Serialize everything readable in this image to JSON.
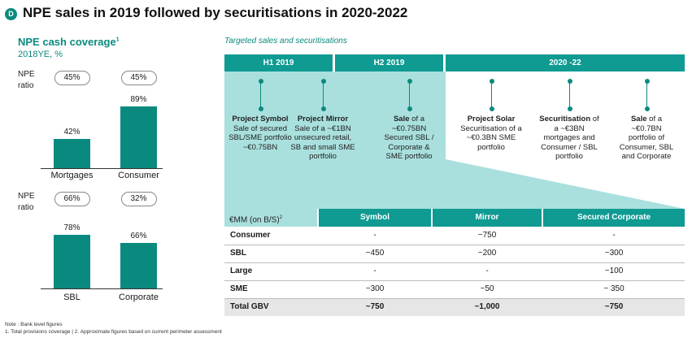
{
  "header": {
    "badge": "D",
    "title": "NPE sales in 2019 followed by securitisations in 2020-2022"
  },
  "coverage": {
    "title": "NPE cash coverage",
    "title_sup": "1",
    "subtitle": "2018YE, %",
    "npe_label_1": "NPE",
    "npe_label_2": "ratio"
  },
  "chart_data": [
    {
      "type": "bar",
      "title": "NPE cash coverage (top)",
      "categories": [
        "Mortgages",
        "Consumer"
      ],
      "values": [
        42,
        89
      ],
      "value_labels": [
        "42%",
        "89%"
      ],
      "npe_ratio": [
        "45%",
        "45%"
      ],
      "ylim": [
        0,
        100
      ]
    },
    {
      "type": "bar",
      "title": "NPE cash coverage (bottom)",
      "categories": [
        "SBL",
        "Corporate"
      ],
      "values": [
        78,
        66
      ],
      "value_labels": [
        "78%",
        "66%"
      ],
      "npe_ratio": [
        "66%",
        "32%"
      ],
      "ylim": [
        0,
        100
      ]
    }
  ],
  "timeline": {
    "caption": "Targeted sales and securitisations",
    "periods": [
      "H1 2019",
      "H2 2019",
      "2020 -22"
    ],
    "projects": [
      {
        "bold": "Project Symbol",
        "rest": "",
        "lines": [
          "Sale of secured",
          "SBL/SME portfolio",
          "~€0.75BN"
        ]
      },
      {
        "bold": "Project Mirror",
        "rest": "",
        "lines": [
          "Sale of a ~€1BN",
          "unsecured retail,",
          "SB and small SME",
          "portfolio"
        ]
      },
      {
        "bold": "Sale",
        "rest": " of a",
        "lines": [
          "~€0.75BN",
          "Secured SBL /",
          "Corporate &",
          "SME portfolio"
        ]
      },
      {
        "bold": "Project Solar",
        "rest": "",
        "lines": [
          "Securitisation of a",
          "~€0.3BN SME",
          "portfolio"
        ]
      },
      {
        "bold": "Securitisation",
        "rest": " of",
        "lines": [
          "a ~€3BN",
          "mortgages and",
          "Consumer / SBL",
          "portfolio"
        ]
      },
      {
        "bold": "Sale",
        "rest": " of a",
        "lines": [
          "~€0.7BN",
          "portfolio of",
          "Consumer, SBL",
          "and Corporate"
        ]
      }
    ]
  },
  "table": {
    "corner": "€MM (on B/S)",
    "corner_sup": "2",
    "columns": [
      "Symbol",
      "Mirror",
      "Secured Corporate"
    ],
    "rows": [
      {
        "label": "Consumer",
        "cells": [
          "-",
          "~750",
          "-"
        ]
      },
      {
        "label": "SBL",
        "cells": [
          "~450",
          "~200",
          "~300"
        ]
      },
      {
        "label": "Large",
        "cells": [
          "-",
          "-",
          "~100"
        ]
      },
      {
        "label": "SME",
        "cells": [
          "~300",
          "~50",
          "~ 350"
        ]
      },
      {
        "label": "Total GBV",
        "cells": [
          "~750",
          "~1,000",
          "~750"
        ]
      }
    ]
  },
  "notes": {
    "line1": "Note : Bank level figures",
    "line2": "1. Total provisions coverage | 2. Approximate figures based on current perimeter assessment"
  },
  "colors": {
    "teal": "#0a8a7e",
    "header_teal": "#0f9a92",
    "light_teal": "#a9e0de"
  }
}
